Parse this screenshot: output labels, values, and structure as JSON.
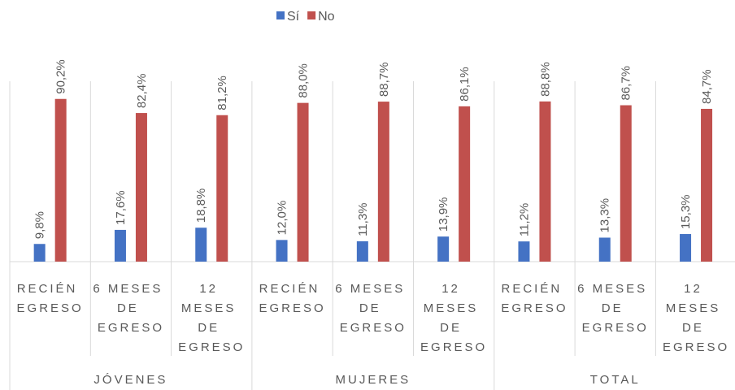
{
  "chart_data": {
    "type": "bar",
    "groups": [
      "JÓVENES",
      "MUJERES",
      "TOTAL"
    ],
    "categories": [
      "RECIÉN EGRESO",
      "6 MESES DE EGRESO",
      "12 MESES DE EGRESO",
      "RECIÉN EGRESO",
      "6 MESES DE EGRESO",
      "12 MESES DE EGRESO",
      "RECIÉN EGRESO",
      "6 MESES DE EGRESO",
      "12 MESES DE EGRESO"
    ],
    "series": [
      {
        "name": "Sí",
        "color": "#4472c4",
        "values": [
          9.8,
          17.6,
          18.8,
          12.0,
          11.3,
          13.9,
          11.2,
          13.3,
          15.3
        ],
        "value_labels": [
          "9,8%",
          "17,6%",
          "18,8%",
          "12,0%",
          "11,3%",
          "13,9%",
          "11,2%",
          "13,3%",
          "15,3%"
        ]
      },
      {
        "name": "No",
        "color": "#c0504d",
        "values": [
          90.2,
          82.4,
          81.2,
          88.0,
          88.7,
          86.1,
          88.8,
          86.7,
          84.7
        ],
        "value_labels": [
          "90,2%",
          "82,4%",
          "81,2%",
          "88,0%",
          "88,7%",
          "86,1%",
          "88,8%",
          "86,7%",
          "84,7%"
        ]
      }
    ],
    "ylim": [
      0,
      100
    ],
    "legend": "top"
  }
}
